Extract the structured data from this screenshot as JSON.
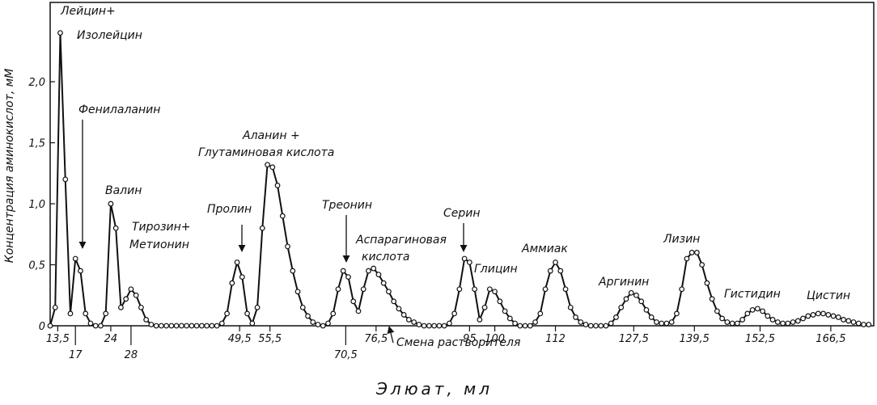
{
  "chart_data": {
    "type": "line",
    "x_label": "Элюат, мл",
    "y_label": "Концентрация аминокислот, мМ",
    "xlim": [
      12,
      175
    ],
    "ylim": [
      0,
      2.65
    ],
    "xticks": [
      {
        "value": 13.5,
        "label": "13,5"
      },
      17,
      24,
      28,
      {
        "value": 49.5,
        "label": "49,5"
      },
      {
        "value": 55.5,
        "label": "55,5"
      },
      {
        "value": 70.5,
        "label": "70,5"
      },
      {
        "value": 76.5,
        "label": "76,5"
      },
      95,
      100,
      112,
      {
        "value": 127.5,
        "label": "127,5"
      },
      {
        "value": 139.5,
        "label": "139,5"
      },
      {
        "value": 152.5,
        "label": "152,5"
      },
      {
        "value": 166.5,
        "label": "166,5"
      }
    ],
    "yticks": [
      0,
      {
        "value": 0.5,
        "label": "0,5"
      },
      {
        "value": 1.0,
        "label": "1,0"
      },
      {
        "value": 1.5,
        "label": "1,5"
      },
      {
        "value": 2.0,
        "label": "2,0"
      }
    ],
    "color": "#111111",
    "grid": false,
    "annotations": [
      "Лейцин+",
      "Изолейцин",
      "Фенилаланин",
      "Аланин +",
      "Глутаминовая кислота",
      "Валин",
      "Тирозин+",
      "Метионин",
      "Пролин",
      "Треонин",
      "Аспарагиновая",
      "кислота",
      "Серин",
      "Глицин",
      "Аммиак",
      "Аргинин",
      "Лизин",
      "Гистидин",
      "Цистин",
      "Смена растворителя"
    ],
    "x": [
      12,
      13,
      14,
      15,
      16,
      17,
      18,
      19,
      20,
      21,
      22,
      23,
      24,
      25,
      26,
      27,
      28,
      29,
      30,
      31,
      32,
      33,
      34,
      35,
      36,
      37,
      38,
      39,
      40,
      41,
      42,
      43,
      44,
      45,
      46,
      47,
      48,
      49,
      50,
      51,
      52,
      53,
      54,
      55,
      56,
      57,
      58,
      59,
      60,
      61,
      62,
      63,
      64,
      65,
      66,
      67,
      68,
      69,
      70,
      71,
      72,
      73,
      74,
      75,
      76,
      77,
      78,
      79,
      80,
      81,
      82,
      83,
      84,
      85,
      86,
      87,
      88,
      89,
      90,
      91,
      92,
      93,
      94,
      95,
      96,
      97,
      98,
      99,
      100,
      101,
      102,
      103,
      104,
      105,
      106,
      107,
      108,
      109,
      110,
      111,
      112,
      113,
      114,
      115,
      116,
      117,
      118,
      119,
      120,
      121,
      122,
      123,
      124,
      125,
      126,
      127,
      128,
      129,
      130,
      131,
      132,
      133,
      134,
      135,
      136,
      137,
      138,
      139,
      140,
      141,
      142,
      143,
      144,
      145,
      146,
      147,
      148,
      149,
      150,
      151,
      152,
      153,
      154,
      155,
      156,
      157,
      158,
      159,
      160,
      161,
      162,
      163,
      164,
      165,
      166,
      167,
      168,
      169,
      170,
      171,
      172,
      173,
      174
    ],
    "values": [
      0,
      0.15,
      2.4,
      1.2,
      0.1,
      0.55,
      0.45,
      0.1,
      0.02,
      0,
      0,
      0.1,
      1.0,
      0.8,
      0.15,
      0.22,
      0.3,
      0.25,
      0.15,
      0.05,
      0.01,
      0,
      0,
      0,
      0,
      0,
      0,
      0,
      0,
      0,
      0,
      0,
      0,
      0,
      0.02,
      0.1,
      0.35,
      0.52,
      0.4,
      0.1,
      0.02,
      0.15,
      0.8,
      1.32,
      1.3,
      1.15,
      0.9,
      0.65,
      0.45,
      0.28,
      0.15,
      0.08,
      0.03,
      0.01,
      0,
      0.02,
      0.1,
      0.3,
      0.45,
      0.4,
      0.2,
      0.12,
      0.3,
      0.45,
      0.47,
      0.42,
      0.35,
      0.28,
      0.2,
      0.14,
      0.09,
      0.05,
      0.03,
      0.01,
      0,
      0,
      0,
      0,
      0,
      0.02,
      0.1,
      0.3,
      0.55,
      0.52,
      0.3,
      0.05,
      0.15,
      0.3,
      0.28,
      0.2,
      0.12,
      0.06,
      0.02,
      0,
      0,
      0,
      0.03,
      0.1,
      0.3,
      0.45,
      0.52,
      0.45,
      0.3,
      0.15,
      0.07,
      0.03,
      0.01,
      0,
      0,
      0,
      0,
      0.02,
      0.07,
      0.15,
      0.22,
      0.27,
      0.25,
      0.2,
      0.13,
      0.07,
      0.03,
      0.02,
      0.02,
      0.03,
      0.1,
      0.3,
      0.55,
      0.6,
      0.6,
      0.5,
      0.35,
      0.22,
      0.12,
      0.06,
      0.03,
      0.02,
      0.02,
      0.05,
      0.1,
      0.13,
      0.14,
      0.12,
      0.08,
      0.05,
      0.03,
      0.02,
      0.02,
      0.03,
      0.04,
      0.06,
      0.08,
      0.09,
      0.1,
      0.1,
      0.09,
      0.08,
      0.07,
      0.05,
      0.04,
      0.03,
      0.02,
      0.01,
      0.01
    ]
  }
}
